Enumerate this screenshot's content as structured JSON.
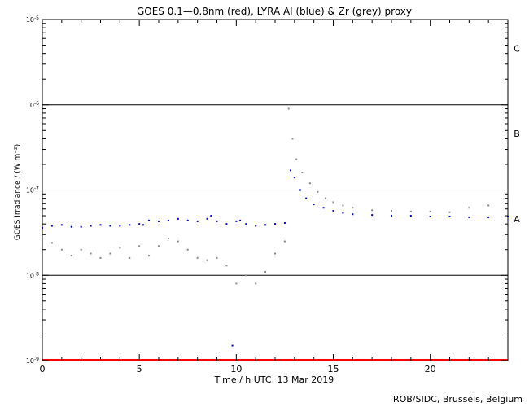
{
  "chart_data": {
    "type": "scatter",
    "title": "GOES 0.1—0.8nm (red), LYRA Al (blue) & Zr (grey) proxy",
    "xlabel": "Time / h UTC, 13 Mar 2019",
    "ylabel": "GOES Irradiance / (W m⁻²)",
    "xlim": [
      0,
      24
    ],
    "ylim": [
      1e-09,
      1e-05
    ],
    "yscale": "log",
    "x_ticks": [
      0,
      5,
      10,
      15,
      20
    ],
    "x_tick_labels": [
      "0",
      "5",
      "10",
      "15",
      "20"
    ],
    "y_tick_labels": [
      {
        "value": 1e-09,
        "base": "10",
        "exp": "-9"
      },
      {
        "value": 1e-08,
        "base": "10",
        "exp": "-8"
      },
      {
        "value": 1e-07,
        "base": "10",
        "exp": "-7"
      },
      {
        "value": 1e-06,
        "base": "10",
        "exp": "-6"
      },
      {
        "value": 1e-05,
        "base": "10",
        "exp": "-5"
      }
    ],
    "class_lines": [
      1e-08,
      1e-07,
      1e-06
    ],
    "flare_classes": [
      {
        "label": "A",
        "value": 4.6e-08
      },
      {
        "label": "B",
        "value": 4.6e-07
      },
      {
        "label": "C",
        "value": 4.6e-06
      }
    ],
    "series": [
      {
        "name": "GOES 0.1—0.8nm",
        "color": "#ff0000",
        "style": "line",
        "x": [
          0,
          24
        ],
        "y": [
          1e-09,
          1e-09
        ]
      },
      {
        "name": "LYRA Al proxy",
        "color": "#0000cc",
        "style": "points",
        "x": [
          0,
          0.5,
          1,
          1.5,
          2,
          2.5,
          3,
          3.5,
          4,
          4.5,
          5,
          5.2,
          5.5,
          6,
          6.5,
          7,
          7.5,
          8,
          8.5,
          8.7,
          9,
          9.5,
          9.8,
          10,
          10.2,
          10.5,
          11,
          11.5,
          12,
          12.5,
          12.8,
          13.0,
          13.3,
          13.6,
          14.0,
          14.5,
          15,
          15.5,
          16,
          17,
          18,
          19,
          20,
          21,
          22,
          23,
          24
        ],
        "y": [
          3.6e-08,
          3.8e-08,
          3.9e-08,
          3.7e-08,
          3.7e-08,
          3.8e-08,
          3.9e-08,
          3.8e-08,
          3.8e-08,
          3.9e-08,
          4e-08,
          3.9e-08,
          4.4e-08,
          4.3e-08,
          4.4e-08,
          4.6e-08,
          4.4e-08,
          4.3e-08,
          4.6e-08,
          5e-08,
          4.3e-08,
          4e-08,
          1.5e-09,
          4.3e-08,
          4.4e-08,
          4e-08,
          3.8e-08,
          3.9e-08,
          4e-08,
          4.1e-08,
          1.7e-07,
          1.4e-07,
          1e-07,
          8e-08,
          6.8e-08,
          6.2e-08,
          5.7e-08,
          5.4e-08,
          5.2e-08,
          5.1e-08,
          5e-08,
          5e-08,
          4.9e-08,
          4.9e-08,
          4.8e-08,
          4.8e-08,
          4.9e-08
        ]
      },
      {
        "name": "LYRA Zr proxy",
        "color": "#888888",
        "style": "points",
        "x": [
          0,
          0.5,
          1,
          1.5,
          2,
          2.5,
          3,
          3.5,
          4,
          4.5,
          5,
          5.5,
          6,
          6.5,
          7,
          7.5,
          8,
          8.5,
          9,
          9.5,
          10,
          10.5,
          11,
          11.5,
          12,
          12.5,
          12.7,
          12.9,
          13.1,
          13.4,
          13.8,
          14.2,
          14.6,
          15,
          15.5,
          16,
          17,
          18,
          19,
          20,
          21,
          22,
          23,
          24
        ],
        "y": [
          2.8e-08,
          2.4e-08,
          2e-08,
          1.7e-08,
          2e-08,
          1.8e-08,
          1.6e-08,
          1.8e-08,
          2.1e-08,
          1.6e-08,
          2.2e-08,
          1.7e-08,
          2.2e-08,
          2.7e-08,
          2.5e-08,
          2e-08,
          1.6e-08,
          1.5e-08,
          1.6e-08,
          1.3e-08,
          8e-09,
          1e-08,
          8e-09,
          1.1e-08,
          1.8e-08,
          2.5e-08,
          9e-07,
          4e-07,
          2.3e-07,
          1.6e-07,
          1.2e-07,
          9.5e-08,
          8e-08,
          7.2e-08,
          6.6e-08,
          6.2e-08,
          5.8e-08,
          5.7e-08,
          5.6e-08,
          5.6e-08,
          5.5e-08,
          6.2e-08,
          6.6e-08,
          7.2e-08
        ]
      }
    ]
  },
  "footer": {
    "credit": "ROB/SIDC, Brussels, Belgium"
  }
}
